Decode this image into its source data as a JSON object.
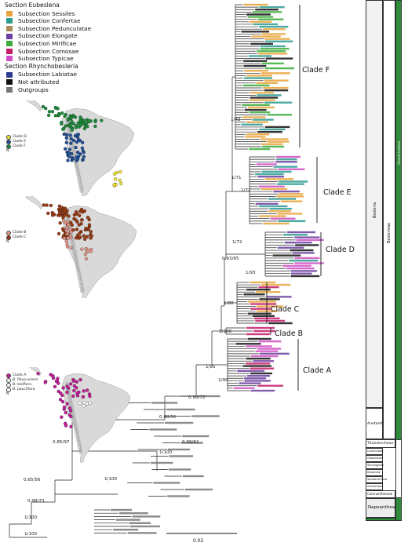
{
  "legend": {
    "section_1": "Section Eubeslena",
    "items_1": [
      {
        "label": "Subsection Sessiles",
        "color": "#e8a33a"
      },
      {
        "label": "Subsection Confertae",
        "color": "#2a9a8f"
      },
      {
        "label": "Subsection Pedunculatae",
        "color": "#a98b5b"
      },
      {
        "label": "Subsection Elongate",
        "color": "#6b3fa0"
      },
      {
        "label": "Subsection Mirificae",
        "color": "#3bab3a"
      },
      {
        "label": "Subsection Comosae",
        "color": "#c41c6b"
      },
      {
        "label": "Subsection Typicae",
        "color": "#d04fc4"
      }
    ],
    "section_2": "Section Rhynchobesleria",
    "items_2": [
      {
        "label": "Subsection Labiatae",
        "color": "#2b3b8f"
      },
      {
        "label": "Not attributed",
        "color": "#111111"
      },
      {
        "label": "Outgroups",
        "color": "#777777"
      }
    ]
  },
  "maps": [
    {
      "clades": [
        {
          "label": "Clade D",
          "color": "#f2e43a"
        },
        {
          "label": "Clade E",
          "color": "#1f4f9a"
        },
        {
          "label": "Clade F",
          "color": "#1c8f3a"
        }
      ],
      "extra": "N"
    },
    {
      "clades": [
        {
          "label": "Clade B",
          "color": "#e89a8c"
        },
        {
          "label": "Clade C",
          "color": "#9a3a12"
        }
      ],
      "extra": "N"
    },
    {
      "clades": [
        {
          "label": "Clade A",
          "color": "#c41c9a"
        },
        {
          "label": "B. flavo-virens",
          "color": "#ffffff"
        },
        {
          "label": "B. lexiflora",
          "color": "#ffffff"
        },
        {
          "label": "B. pauciflora",
          "color": "#ffffff"
        }
      ],
      "extra": "N"
    }
  ],
  "clades": {
    "F": "Clade F",
    "E": "Clade E",
    "D": "Clade D",
    "C": "Clade C",
    "B": "Clade B",
    "A": "Clade A"
  },
  "supports": {
    "s1": "1/42",
    "s2": "1/71",
    "s3": "1/72",
    "s4": "1/72",
    "s5": "0.93/65",
    "s6": "1/93",
    "s7": "1/88",
    "s8": "1/100",
    "s9": "1/95",
    "s10": "1/99",
    "s11": "0.98/72",
    "s12": "0.88/52",
    "s13": "0.85/97",
    "s14": "1/100",
    "s15": "0.99/62",
    "s16": "0.65/56",
    "s17": "1/100",
    "s18": "0.98/73",
    "s19": "1/100",
    "s20": "1/100"
  },
  "scale": {
    "label": "0.02"
  },
  "classification": {
    "genus": "Besleria",
    "tribe": "Beslerieae",
    "tribe2": "Gesnerioideae",
    "subtribe_a": "Anetanthinae",
    "titan": "Titanotricheae",
    "sub_c": "Coronanthereae",
    "sub_d": "Napeantheae",
    "small1": "Gloxinieae",
    "small2": "Sinningieae",
    "small3": "Episcieae",
    "small4": "Sphaerorrhiza",
    "small5": "Gesnerieae",
    "small6": "Columneae",
    "small7": "Titanotricheae"
  }
}
